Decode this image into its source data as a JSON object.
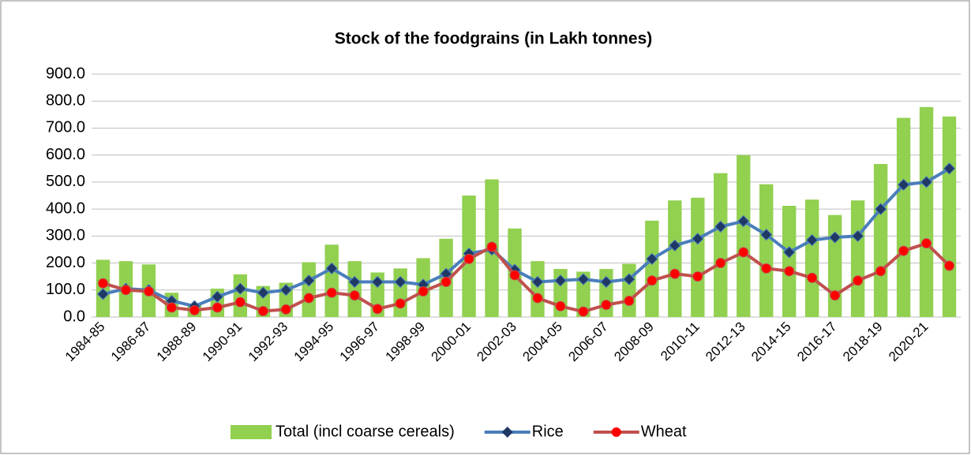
{
  "chart_data": {
    "type": "bar-line",
    "title": "Stock of the foodgrains  (in Lakh tonnes)",
    "categories": [
      "1984-85",
      null,
      "1986-87",
      null,
      "1988-89",
      null,
      "1990-91",
      null,
      "1992-93",
      null,
      "1994-95",
      null,
      "1996-97",
      null,
      "1998-99",
      null,
      "2000-01",
      null,
      "2002-03",
      null,
      "2004-05",
      null,
      "2006-07",
      null,
      "2008-09",
      null,
      "2010-11",
      null,
      "2012-13",
      null,
      "2014-15",
      null,
      "2016-17",
      null,
      "2018-19",
      null,
      "2020-21",
      null
    ],
    "series": [
      {
        "name": "Total (incl coarse cereals)",
        "kind": "bar",
        "color": "#92d050",
        "values": [
          212,
          207,
          195,
          90,
          48,
          105,
          158,
          115,
          127,
          203,
          268,
          207,
          165,
          180,
          218,
          290,
          450,
          510,
          328,
          207,
          178,
          168,
          178,
          197,
          357,
          432,
          442,
          533,
          600,
          492,
          412,
          435,
          378,
          432,
          567,
          738,
          778,
          743
        ]
      },
      {
        "name": "Rice",
        "kind": "line",
        "color": "#4a7ebb",
        "marker_color": "#1f3864",
        "marker": "diamond",
        "values": [
          85,
          105,
          100,
          60,
          40,
          75,
          105,
          90,
          100,
          135,
          180,
          130,
          130,
          130,
          120,
          160,
          235,
          250,
          175,
          130,
          135,
          140,
          130,
          140,
          215,
          265,
          290,
          335,
          355,
          305,
          240,
          285,
          295,
          300,
          400,
          490,
          500,
          550
        ]
      },
      {
        "name": "Wheat",
        "kind": "line",
        "color": "#c0504d",
        "marker_color": "#ff0000",
        "marker": "circle",
        "values": [
          125,
          100,
          95,
          35,
          25,
          35,
          55,
          22,
          28,
          70,
          90,
          80,
          30,
          50,
          95,
          130,
          215,
          260,
          155,
          70,
          40,
          20,
          45,
          60,
          135,
          160,
          150,
          200,
          240,
          180,
          170,
          145,
          80,
          135,
          170,
          245,
          273,
          190
        ]
      }
    ],
    "ylim": [
      0,
      900
    ],
    "yticks": [
      {
        "value": 0,
        "label": "0.0"
      },
      {
        "value": 100,
        "label": "100.0"
      },
      {
        "value": 200,
        "label": "200.0"
      },
      {
        "value": 300,
        "label": "300.0"
      },
      {
        "value": 400,
        "label": "400.0"
      },
      {
        "value": 500,
        "label": "500.0"
      },
      {
        "value": 600,
        "label": "600.0"
      },
      {
        "value": 700,
        "label": "700.0"
      },
      {
        "value": 800,
        "label": "800.0"
      },
      {
        "value": 900,
        "label": "900.0"
      }
    ],
    "grid": true,
    "legend": "bottom"
  }
}
